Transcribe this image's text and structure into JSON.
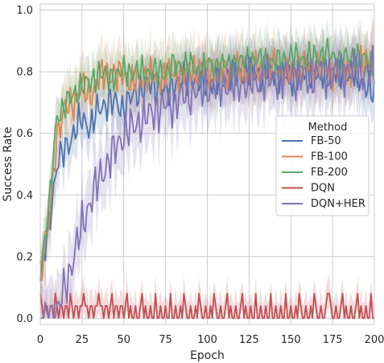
{
  "chart_data": {
    "type": "line",
    "xlabel": "Epoch",
    "ylabel": "Success Rate",
    "xlim": [
      0,
      200
    ],
    "ylim": [
      -0.02,
      1.02
    ],
    "xticks": [
      0,
      25,
      50,
      75,
      100,
      125,
      150,
      175,
      200
    ],
    "yticks": [
      0.0,
      0.2,
      0.4,
      0.6,
      0.8,
      1.0
    ],
    "xtick_labels": [
      "0",
      "25",
      "50",
      "75",
      "100",
      "125",
      "150",
      "175",
      "200"
    ],
    "ytick_labels": [
      "0.0",
      "0.2",
      "0.4",
      "0.6",
      "0.8",
      "1.0"
    ],
    "grid": true,
    "background": "#ffffff",
    "grid_color": "#cccccc",
    "legend": {
      "title": "Method",
      "placement": "center-right"
    },
    "series": [
      {
        "name": "FB-50",
        "color": "#4c72b0",
        "x": [
          0,
          5,
          10,
          15,
          20,
          25,
          30,
          35,
          40,
          45,
          50,
          55,
          60,
          65,
          70,
          75,
          80,
          85,
          90,
          95,
          100,
          110,
          120,
          130,
          140,
          150,
          160,
          170,
          180,
          190,
          200
        ],
        "values": [
          0.12,
          0.3,
          0.5,
          0.55,
          0.6,
          0.65,
          0.62,
          0.68,
          0.7,
          0.7,
          0.68,
          0.72,
          0.74,
          0.76,
          0.75,
          0.73,
          0.76,
          0.77,
          0.78,
          0.77,
          0.76,
          0.78,
          0.8,
          0.79,
          0.8,
          0.78,
          0.8,
          0.79,
          0.8,
          0.79,
          0.72
        ]
      },
      {
        "name": "FB-100",
        "color": "#dd8452",
        "x": [
          0,
          5,
          10,
          15,
          20,
          25,
          30,
          35,
          40,
          45,
          50,
          55,
          60,
          65,
          70,
          75,
          80,
          85,
          90,
          95,
          100,
          110,
          120,
          130,
          140,
          150,
          160,
          170,
          180,
          190,
          200
        ],
        "values": [
          0.15,
          0.3,
          0.6,
          0.68,
          0.7,
          0.75,
          0.72,
          0.78,
          0.8,
          0.78,
          0.8,
          0.76,
          0.78,
          0.79,
          0.78,
          0.8,
          0.8,
          0.79,
          0.8,
          0.81,
          0.8,
          0.8,
          0.81,
          0.8,
          0.82,
          0.8,
          0.82,
          0.81,
          0.8,
          0.82,
          0.85
        ]
      },
      {
        "name": "FB-200",
        "color": "#55a868",
        "x": [
          0,
          5,
          10,
          15,
          20,
          25,
          30,
          35,
          40,
          45,
          50,
          55,
          60,
          65,
          70,
          75,
          80,
          85,
          90,
          95,
          100,
          110,
          120,
          130,
          140,
          150,
          160,
          170,
          180,
          190,
          200
        ],
        "values": [
          0.15,
          0.35,
          0.65,
          0.7,
          0.72,
          0.76,
          0.76,
          0.8,
          0.78,
          0.79,
          0.8,
          0.8,
          0.8,
          0.8,
          0.8,
          0.8,
          0.82,
          0.82,
          0.82,
          0.8,
          0.82,
          0.82,
          0.83,
          0.84,
          0.83,
          0.85,
          0.84,
          0.86,
          0.84,
          0.85,
          0.82
        ]
      },
      {
        "name": "DQN",
        "color": "#c44e52",
        "x": [
          0,
          5,
          10,
          15,
          20,
          25,
          30,
          35,
          40,
          45,
          50,
          55,
          60,
          65,
          70,
          75,
          80,
          85,
          90,
          95,
          100,
          110,
          120,
          130,
          140,
          150,
          160,
          170,
          180,
          190,
          200
        ],
        "values": [
          0.02,
          0.02,
          0.03,
          0.02,
          0.03,
          0.04,
          0.02,
          0.03,
          0.02,
          0.03,
          0.04,
          0.03,
          0.02,
          0.03,
          0.04,
          0.02,
          0.03,
          0.03,
          0.02,
          0.03,
          0.03,
          0.04,
          0.03,
          0.03,
          0.04,
          0.03,
          0.03,
          0.02,
          0.04,
          0.03,
          0.02
        ]
      },
      {
        "name": "DQN+HER",
        "color": "#8172b3",
        "x": [
          0,
          5,
          10,
          15,
          20,
          25,
          30,
          35,
          40,
          45,
          50,
          55,
          60,
          65,
          70,
          75,
          80,
          85,
          90,
          95,
          100,
          110,
          120,
          130,
          140,
          150,
          160,
          170,
          180,
          190,
          200
        ],
        "values": [
          0.0,
          0.0,
          0.02,
          0.1,
          0.2,
          0.3,
          0.38,
          0.45,
          0.5,
          0.55,
          0.6,
          0.62,
          0.64,
          0.66,
          0.68,
          0.69,
          0.7,
          0.72,
          0.73,
          0.74,
          0.75,
          0.76,
          0.76,
          0.77,
          0.78,
          0.78,
          0.78,
          0.79,
          0.8,
          0.8,
          0.8
        ]
      }
    ]
  }
}
